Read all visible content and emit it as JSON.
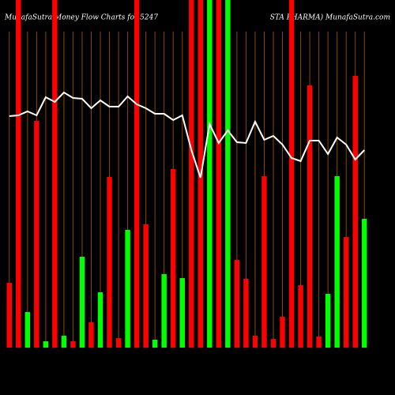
{
  "chart_data": {
    "type": "bar",
    "title": "MunafaSutra  Money Flow  Charts for 5247",
    "subtitle": "STA PHARMA) MunafaSutra.com",
    "ylim": [
      0,
      440
    ],
    "values": [
      82,
      440,
      45,
      287,
      8,
      440,
      15,
      8,
      115,
      32,
      70,
      216,
      12,
      149,
      440,
      156,
      10,
      93,
      226,
      88,
      440,
      440,
      440,
      440,
      440,
      111,
      87,
      15,
      217,
      11,
      39,
      440,
      79,
      332,
      14,
      68,
      217,
      140,
      344,
      163
    ],
    "colors": [
      "#ff0000",
      "#ff0000",
      "#00ff00",
      "#ff0000",
      "#00ff00",
      "#ff0000",
      "#00ff00",
      "#ff0000",
      "#00ff00",
      "#ff0000",
      "#00ff00",
      "#ff0000",
      "#ff0000",
      "#00ff00",
      "#ff0000",
      "#ff0000",
      "#00ff00",
      "#00ff00",
      "#ff0000",
      "#00ff00",
      "#ff0000",
      "#ff0000",
      "#00ff00",
      "#ff0000",
      "#00ff00",
      "#ff0000",
      "#ff0000",
      "#ff0000",
      "#ff0000",
      "#ff0000",
      "#ff0000",
      "#ff0000",
      "#ff0000",
      "#ff0000",
      "#ff0000",
      "#00ff00",
      "#00ff00",
      "#ff0000",
      "#ff0000",
      "#00ff00"
    ],
    "line": {
      "color": "#ffffff",
      "values": [
        293,
        294,
        299,
        294,
        317,
        311,
        323,
        316,
        315,
        303,
        313,
        305,
        305,
        318,
        308,
        303,
        296,
        296,
        288,
        294,
        250,
        215,
        283,
        259,
        275,
        260,
        259,
        286,
        263,
        268,
        257,
        240,
        236,
        262,
        262,
        245,
        266,
        257,
        238,
        250
      ]
    }
  }
}
